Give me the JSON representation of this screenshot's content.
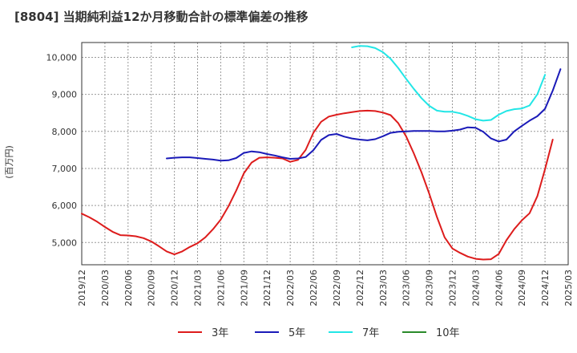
{
  "chart_data": {
    "type": "line",
    "title": "[8804]  当期純利益12か月移動合計の標準偏差の推移",
    "ylabel": "(百万円)",
    "xlabel": "",
    "ylim": [
      4400,
      10400
    ],
    "yticks": [
      5000,
      6000,
      7000,
      8000,
      9000,
      10000
    ],
    "ytick_labels": [
      "5,000",
      "6,000",
      "7,000",
      "8,000",
      "9,000",
      "10,000"
    ],
    "x_start": "2019-12",
    "x_end": "2025-03",
    "xtick_labels": [
      "2019/12",
      "2020/03",
      "2020/06",
      "2020/09",
      "2020/12",
      "2021/03",
      "2021/06",
      "2021/09",
      "2021/12",
      "2022/03",
      "2022/06",
      "2022/09",
      "2022/12",
      "2023/03",
      "2023/06",
      "2023/09",
      "2023/12",
      "2024/03",
      "2024/06",
      "2024/09",
      "2024/12",
      "2025/03"
    ],
    "grid": true,
    "legend_position": "bottom",
    "series": [
      {
        "name": "3年",
        "color": "#dd1c1c",
        "start": "2019-12",
        "values": [
          5780,
          5680,
          5560,
          5420,
          5290,
          5200,
          5190,
          5170,
          5120,
          5030,
          4900,
          4760,
          4680,
          4760,
          4880,
          4980,
          5140,
          5360,
          5620,
          5980,
          6400,
          6870,
          7160,
          7290,
          7300,
          7290,
          7270,
          7180,
          7230,
          7500,
          7960,
          8260,
          8400,
          8450,
          8490,
          8520,
          8550,
          8560,
          8550,
          8510,
          8440,
          8220,
          7870,
          7410,
          6900,
          6320,
          5690,
          5140,
          4840,
          4720,
          4620,
          4560,
          4540,
          4550,
          4690,
          5060,
          5360,
          5600,
          5790,
          6250,
          6980,
          7780
        ]
      },
      {
        "name": "5年",
        "color": "#1a1ab8",
        "start": "2020-11",
        "values": [
          7270,
          7290,
          7300,
          7300,
          7280,
          7260,
          7240,
          7210,
          7220,
          7280,
          7420,
          7460,
          7440,
          7390,
          7350,
          7300,
          7260,
          7270,
          7310,
          7490,
          7770,
          7900,
          7930,
          7860,
          7810,
          7780,
          7760,
          7790,
          7870,
          7960,
          7990,
          8000,
          8010,
          8010,
          8010,
          8000,
          8000,
          8020,
          8050,
          8110,
          8100,
          7990,
          7810,
          7730,
          7780,
          8000,
          8150,
          8290,
          8410,
          8610,
          9100,
          9680
        ]
      },
      {
        "name": "7年",
        "color": "#22e6e6",
        "start": "2022-11",
        "values": [
          10270,
          10310,
          10300,
          10250,
          10140,
          9960,
          9710,
          9420,
          9150,
          8900,
          8690,
          8560,
          8530,
          8530,
          8490,
          8420,
          8330,
          8290,
          8310,
          8450,
          8550,
          8600,
          8620,
          8700,
          9000,
          9530
        ]
      },
      {
        "name": "10年",
        "color": "#2a8a2a",
        "start": "2025-03",
        "values": []
      }
    ]
  }
}
